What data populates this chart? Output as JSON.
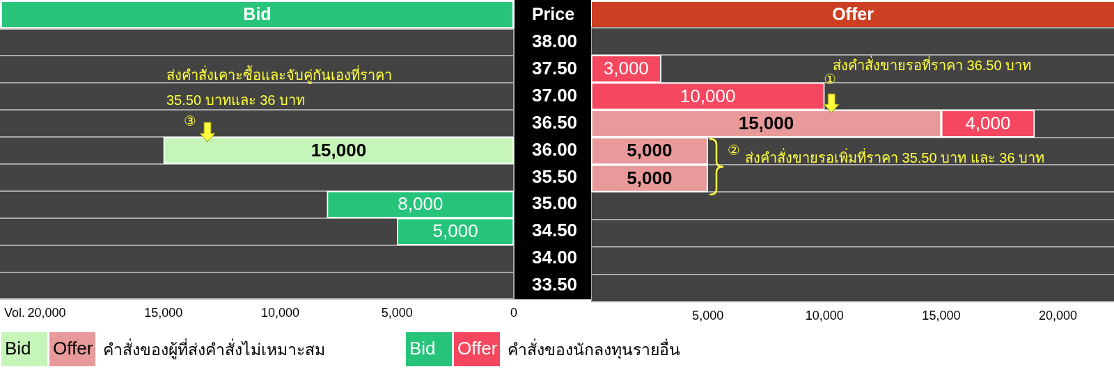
{
  "chart_data": [
    {
      "type": "bar",
      "orientation": "horizontal",
      "stacked": true,
      "title": "Bid",
      "xlabel": "Vol.",
      "ylabel": "Price",
      "categories": [
        "38.00",
        "37.50",
        "37.00",
        "36.50",
        "36.00",
        "35.50",
        "35.00",
        "34.50",
        "34.00",
        "33.50"
      ],
      "series": [
        {
          "color": "#c5f5b8",
          "values": [
            null,
            null,
            null,
            null,
            15000,
            null,
            null,
            null,
            null,
            null
          ],
          "value_labels": [
            null,
            null,
            null,
            null,
            "15,000",
            null,
            null,
            null,
            null,
            null
          ]
        },
        {
          "color": "#26c47a",
          "values": [
            null,
            null,
            null,
            null,
            null,
            null,
            8000,
            5000,
            null,
            null
          ],
          "value_labels": [
            null,
            null,
            null,
            null,
            null,
            null,
            "8,000",
            "5,000",
            null,
            null
          ]
        }
      ],
      "xlim": [
        22000,
        0
      ],
      "xticks": [
        {
          "value": 20000,
          "label": "20,000"
        },
        {
          "value": 15000,
          "label": "15,000"
        },
        {
          "value": 10000,
          "label": "10,000"
        },
        {
          "value": 5000,
          "label": "5,000"
        },
        0
      ],
      "grid": "y",
      "annotations": [
        "ส่งคำสั่งเคาะซื้อและจับคู่กันเองที่ราคา 35.50 บาทและ 36 บาท",
        "③"
      ]
    },
    {
      "type": "bar",
      "orientation": "horizontal",
      "stacked": true,
      "title": "Offer",
      "categories": [
        "38.00",
        "37.50",
        "37.00",
        "36.50",
        "36.00",
        "35.50",
        "35.00",
        "34.50",
        "34.00",
        "33.50"
      ],
      "series": [
        {
          "name": "คำสั่งของผู้ที่ส่งคำสั่งไม่เหมาะสม",
          "color": "#e89a9a",
          "values": [
            null,
            null,
            null,
            15000,
            5000,
            5000,
            null,
            null,
            null,
            null
          ],
          "value_labels": [
            null,
            null,
            null,
            "15,000",
            "5,000",
            "5,000",
            null,
            null,
            null,
            null
          ]
        },
        {
          "name": "คำสั่งของนักลงทุนรายอื่น",
          "color": "#f5475f",
          "values": [
            null,
            3000,
            10000,
            4000,
            null,
            null,
            null,
            null,
            null,
            null
          ],
          "value_labels": [
            null,
            "3,000",
            "10,000",
            "4,000",
            null,
            null,
            null,
            null,
            null,
            null
          ]
        }
      ],
      "xlim": [
        0,
        22400
      ],
      "xticks": [
        {
          "value": 5000,
          "label": "5,000"
        },
        {
          "value": 10000,
          "label": "10,000"
        },
        {
          "value": 15000,
          "label": "15,000"
        },
        {
          "value": 20000,
          "label": "20,000"
        }
      ],
      "tick_labels": "x",
      "grid": "y",
      "legend": "bottom",
      "annotations": [
        "ส่งคำสั่งขายรอที่ราคา 36.50 บาท",
        {
          "text": "①",
          "x": 10000,
          "y": "37.00"
        },
        "②",
        "ส่งคำสั่งขายรอเพิ่มที่ราคา 35.50 บาท และ 36 บาท"
      ]
    }
  ]
}
